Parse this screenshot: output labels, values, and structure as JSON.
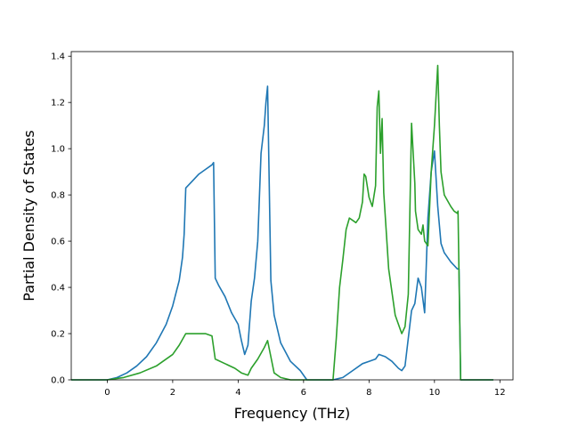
{
  "chart_data": {
    "type": "line",
    "title": "",
    "xlabel": "Frequency (THz)",
    "ylabel": "Partial Density of States",
    "xlim": [
      -1.1,
      12.4
    ],
    "ylim": [
      0.0,
      1.42
    ],
    "xticks": [
      0,
      2,
      4,
      6,
      8,
      10,
      12
    ],
    "yticks": [
      0.0,
      0.2,
      0.4,
      0.6,
      0.8,
      1.0,
      1.2,
      1.4
    ],
    "grid": false,
    "legend": "none",
    "series": [
      {
        "color": "#1f77b4",
        "x": [
          -1.1,
          0.0,
          0.3,
          0.6,
          0.9,
          1.2,
          1.5,
          1.8,
          2.0,
          2.2,
          2.3,
          2.35,
          2.4,
          2.6,
          2.8,
          3.0,
          3.2,
          3.25,
          3.3,
          3.4,
          3.6,
          3.8,
          4.0,
          4.1,
          4.2,
          4.3,
          4.4,
          4.5,
          4.6,
          4.7,
          4.8,
          4.85,
          4.9,
          5.0,
          5.1,
          5.3,
          5.6,
          5.9,
          6.1,
          6.3,
          6.9,
          7.2,
          7.5,
          7.8,
          8.0,
          8.2,
          8.3,
          8.5,
          8.7,
          8.9,
          9.0,
          9.1,
          9.2,
          9.3,
          9.4,
          9.5,
          9.6,
          9.7,
          9.8,
          9.9,
          10.0,
          10.1,
          10.2,
          10.3,
          10.5,
          10.7,
          10.75,
          10.8,
          11.8
        ],
        "values": [
          0.0,
          0.0,
          0.01,
          0.03,
          0.06,
          0.1,
          0.16,
          0.24,
          0.32,
          0.43,
          0.53,
          0.63,
          0.83,
          0.86,
          0.89,
          0.91,
          0.93,
          0.94,
          0.44,
          0.41,
          0.36,
          0.29,
          0.24,
          0.17,
          0.11,
          0.15,
          0.34,
          0.44,
          0.6,
          0.98,
          1.1,
          1.2,
          1.27,
          0.43,
          0.28,
          0.16,
          0.08,
          0.04,
          0.0,
          0.0,
          0.0,
          0.01,
          0.04,
          0.07,
          0.08,
          0.09,
          0.11,
          0.1,
          0.08,
          0.05,
          0.04,
          0.06,
          0.18,
          0.3,
          0.33,
          0.44,
          0.4,
          0.29,
          0.7,
          0.9,
          0.99,
          0.75,
          0.59,
          0.55,
          0.51,
          0.48,
          0.48,
          0.0,
          0.0
        ]
      },
      {
        "color": "#2ca02c",
        "x": [
          -1.1,
          0.0,
          0.5,
          1.0,
          1.5,
          2.0,
          2.2,
          2.4,
          2.5,
          2.8,
          3.0,
          3.2,
          3.3,
          3.6,
          3.9,
          4.1,
          4.3,
          4.4,
          4.6,
          4.8,
          4.9,
          5.0,
          5.1,
          5.3,
          5.6,
          5.9,
          6.1,
          6.9,
          7.0,
          7.1,
          7.2,
          7.3,
          7.4,
          7.5,
          7.6,
          7.7,
          7.8,
          7.85,
          7.9,
          8.0,
          8.1,
          8.2,
          8.25,
          8.3,
          8.35,
          8.4,
          8.45,
          8.5,
          8.6,
          8.8,
          9.0,
          9.1,
          9.2,
          9.3,
          9.4,
          9.42,
          9.5,
          9.6,
          9.65,
          9.7,
          9.8,
          9.9,
          10.0,
          10.1,
          10.15,
          10.2,
          10.3,
          10.5,
          10.6,
          10.7,
          10.72,
          10.8,
          11.8
        ],
        "values": [
          0.0,
          0.0,
          0.01,
          0.03,
          0.06,
          0.11,
          0.15,
          0.2,
          0.2,
          0.2,
          0.2,
          0.19,
          0.09,
          0.07,
          0.05,
          0.03,
          0.02,
          0.05,
          0.09,
          0.14,
          0.17,
          0.1,
          0.03,
          0.01,
          0.0,
          0.0,
          0.0,
          0.0,
          0.18,
          0.4,
          0.52,
          0.65,
          0.7,
          0.69,
          0.68,
          0.7,
          0.77,
          0.89,
          0.88,
          0.79,
          0.75,
          0.84,
          1.18,
          1.25,
          0.98,
          1.13,
          0.81,
          0.7,
          0.48,
          0.28,
          0.2,
          0.23,
          0.37,
          1.11,
          0.85,
          0.73,
          0.65,
          0.63,
          0.67,
          0.6,
          0.58,
          0.9,
          1.1,
          1.36,
          1.1,
          0.9,
          0.8,
          0.75,
          0.73,
          0.72,
          0.73,
          0.0,
          0.0
        ]
      }
    ]
  }
}
